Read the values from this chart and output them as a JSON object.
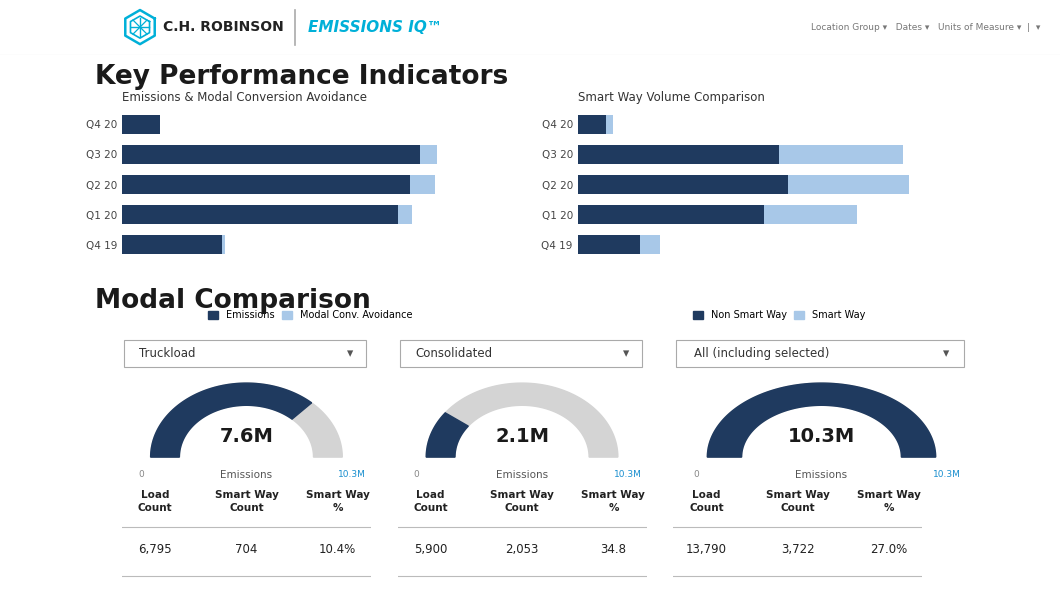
{
  "title_kpi": "Key Performance Indicators",
  "title_modal": "Modal Comparison",
  "chart1_title": "Emissions & Modal Conversion Avoidance",
  "chart2_title": "Smart Way Volume Comparison",
  "categories": [
    "Q4 20",
    "Q3 20",
    "Q2 20",
    "Q1 20",
    "Q4 19"
  ],
  "emissions": [
    1.2,
    9.5,
    9.2,
    8.8,
    3.2
  ],
  "modal_avoidance": [
    0.0,
    0.55,
    0.8,
    0.45,
    0.08
  ],
  "non_smart_way": [
    0.9,
    6.5,
    6.8,
    6.0,
    2.0
  ],
  "smart_way": [
    0.25,
    4.0,
    3.9,
    3.0,
    0.65
  ],
  "color_dark_blue": "#1f3a5f",
  "color_light_blue": "#a8c8e8",
  "color_bg": "#ffffff",
  "color_border": "#cccccc",
  "color_text": "#333333",
  "color_gauge_bg": "#d4d4d4",
  "dropdown1": "Truckload",
  "dropdown2": "Consolidated",
  "dropdown3": "All (including selected)",
  "gauge1_value": "7.6M",
  "gauge1_pct": 0.738,
  "gauge2_value": "2.1M",
  "gauge2_pct": 0.204,
  "gauge3_value": "10.3M",
  "gauge3_pct": 1.0,
  "gauge_label": "Emissions",
  "gauge_min": "0",
  "gauge_max": "10.3M",
  "col_headers": [
    "Load\nCount",
    "Smart Way\nCount",
    "Smart Way\n%"
  ],
  "row1": [
    "6,795",
    "704",
    "10.4%"
  ],
  "row2": [
    "5,900",
    "2,053",
    "34.8"
  ],
  "row3": [
    "13,790",
    "3,722",
    "27.0%"
  ],
  "header_logo_text": "C.H. ROBINSON",
  "header_iq_text": "EMISSIONS IQ",
  "nav_text": "Location Group ▾   Dates ▾   Units of Measure ▾  |  ▾"
}
